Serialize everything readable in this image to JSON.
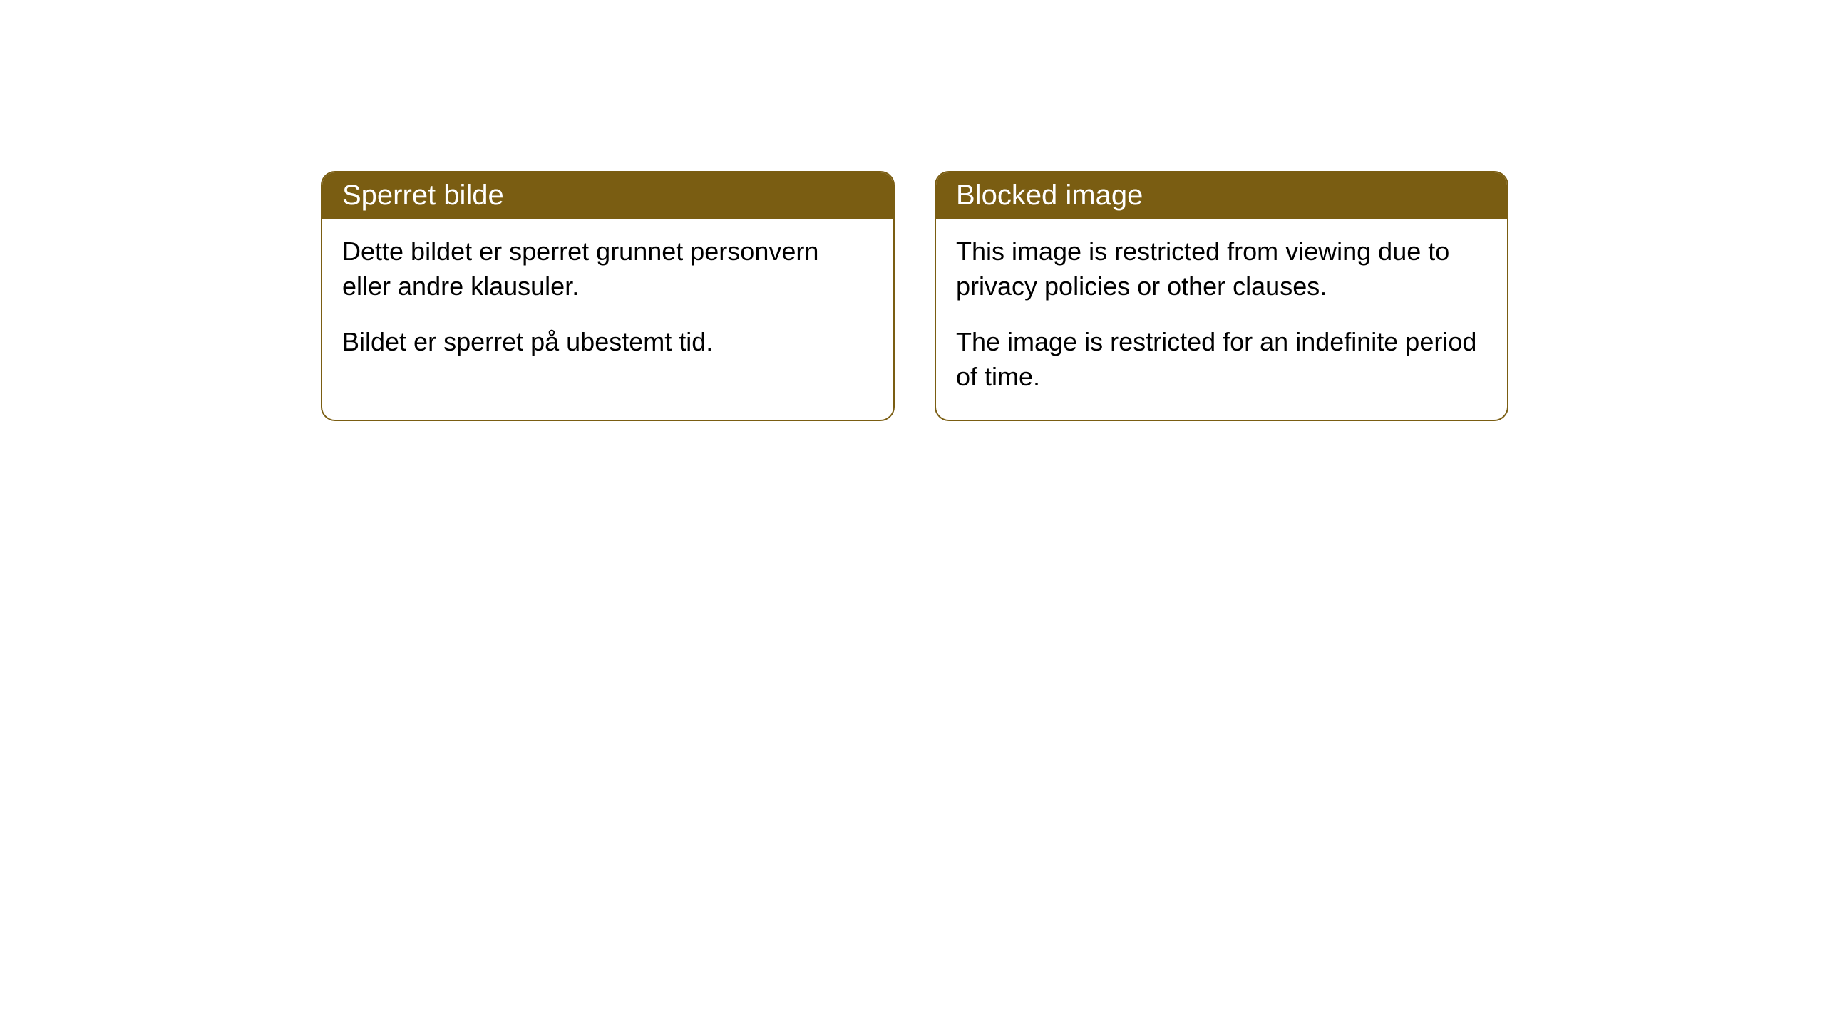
{
  "cards": [
    {
      "title": "Sperret bilde",
      "paragraph1": "Dette bildet er sperret grunnet personvern eller andre klausuler.",
      "paragraph2": "Bildet er sperret på ubestemt tid."
    },
    {
      "title": "Blocked image",
      "paragraph1": "This image is restricted from viewing due to privacy policies or other clauses.",
      "paragraph2": "The image is restricted for an indefinite period of time."
    }
  ],
  "styling": {
    "header_background": "#7a5d12",
    "header_text_color": "#ffffff",
    "border_color": "#7a5d12",
    "body_background": "#ffffff",
    "body_text_color": "#000000",
    "border_radius": 20,
    "title_fontsize": 40,
    "body_fontsize": 36
  }
}
